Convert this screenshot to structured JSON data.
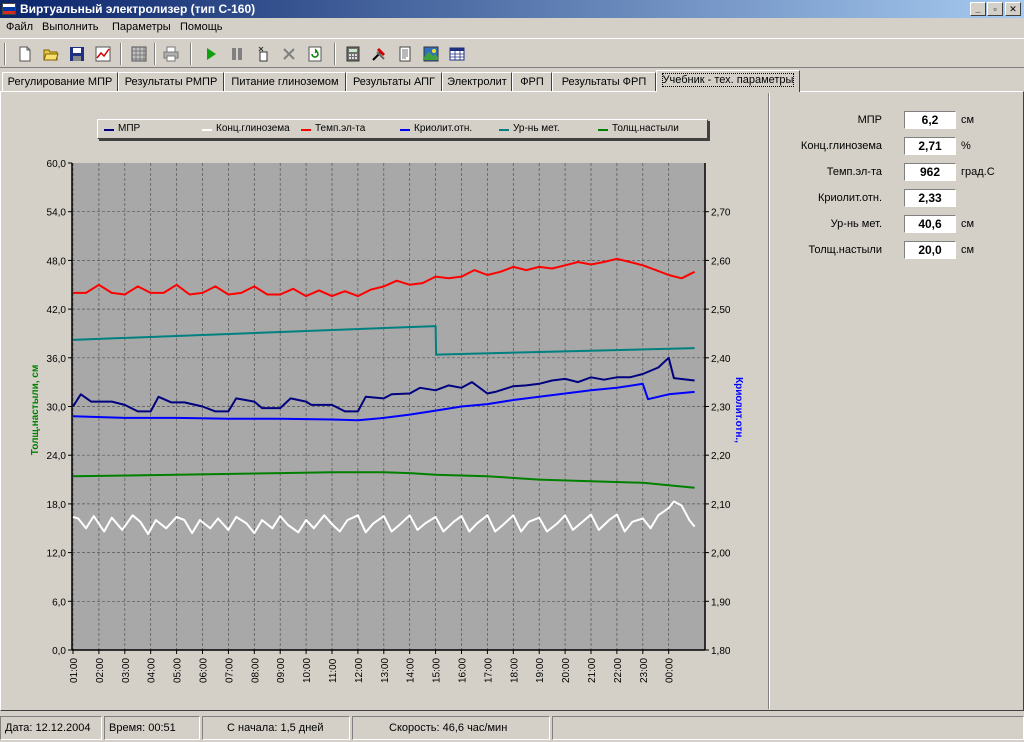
{
  "window": {
    "title": "Виртуальный электролизер (тип С-160)",
    "controls": [
      "_",
      "▫",
      "✕"
    ]
  },
  "menu": [
    "Файл",
    "Выполнить",
    "Параметры",
    "Помощь"
  ],
  "toolbar": [
    "new-file-icon",
    "open-folder-icon",
    "save-disk-icon",
    "chart-icon",
    "grid-icon",
    "print-icon",
    "play-icon",
    "pause-icon",
    "step-icon",
    "stop-cross-icon",
    "refresh-icon",
    "calculator-icon",
    "tools-icon",
    "document-icon",
    "picture-icon",
    "table-icon"
  ],
  "tabs": [
    "Регулирование МПР",
    "Результаты РМПР",
    "Питание глиноземом",
    "Результаты АПГ",
    "Электролит",
    "ФРП",
    "Результаты ФРП",
    "Учебник - тех. параметры"
  ],
  "active_tab": 7,
  "side_panel": [
    {
      "label": "МПР",
      "value": "6,2",
      "unit": "см"
    },
    {
      "label": "Конц.глинозема",
      "value": "2,71",
      "unit": "%"
    },
    {
      "label": "Темп.эл-та",
      "value": "962",
      "unit": "град.С"
    },
    {
      "label": "Криолит.отн.",
      "value": "2,33",
      "unit": ""
    },
    {
      "label": "Ур-нь мет.",
      "value": "40,6",
      "unit": "см"
    },
    {
      "label": "Толщ.настыли",
      "value": "20,0",
      "unit": "см"
    }
  ],
  "status": {
    "date": "Дата: 12.12.2004",
    "time": "Время: 00:51",
    "since": "С начала: 1,5 дней",
    "speed": "Скорость: 46,6 час/мин"
  },
  "colors": {
    "mpr": "#000080",
    "alumina": "#ffffff",
    "temperature": "#ff0000",
    "cryolite": "#0000ff",
    "metal_level": "#008080",
    "ledge": "#008000"
  },
  "chart_data": {
    "type": "line",
    "legend": [
      "МПР",
      "Конц.глинозема",
      "Темп.эл-та",
      "Криолит.отн.",
      "Ур-нь мет.",
      "Толщ.настыли"
    ],
    "legend_position": "top",
    "grid": true,
    "ylabel_left": "Толщ.настыли, см",
    "ylabel_right": "Криолит.отн.,",
    "y_left_ticks": [
      "0,0",
      "6,0",
      "12,0",
      "18,0",
      "24,0",
      "30,0",
      "36,0",
      "42,0",
      "48,0",
      "54,0",
      "60,0"
    ],
    "y_right_ticks": [
      "1,80",
      "1,90",
      "2,00",
      "2,10",
      "2,20",
      "2,30",
      "2,40",
      "2,50",
      "2,60",
      "2,70"
    ],
    "x_ticks": [
      "01:00",
      "02:00",
      "03:00",
      "04:00",
      "05:00",
      "06:00",
      "07:00",
      "08:00",
      "09:00",
      "10:00",
      "11:00",
      "12:00",
      "13:00",
      "14:00",
      "15:00",
      "16:00",
      "17:00",
      "18:00",
      "19:00",
      "20:00",
      "21:00",
      "22:00",
      "23:00",
      "00:00"
    ],
    "ylim_left": [
      0,
      60
    ],
    "xlim_hours": [
      1,
      25.05
    ],
    "series": [
      {
        "name": "Темп.эл-та",
        "color": "#ff0000",
        "x": [
          1,
          1.5,
          2,
          2.5,
          3,
          3.5,
          4,
          4.5,
          5,
          5.5,
          6,
          6.5,
          7,
          7.5,
          8,
          8.5,
          9,
          9.5,
          10,
          10.5,
          11,
          11.5,
          12,
          12.5,
          13,
          13.5,
          14,
          14.5,
          15,
          15.5,
          16,
          16.5,
          17,
          17.5,
          18,
          18.5,
          19,
          19.5,
          20,
          20.5,
          21,
          21.5,
          22,
          22.5,
          23,
          23.5,
          24,
          24.5,
          25
        ],
        "y": [
          44.0,
          44.0,
          45.0,
          44.0,
          43.8,
          44.8,
          44.0,
          44.0,
          45.0,
          43.8,
          44.0,
          44.8,
          43.8,
          44.0,
          44.8,
          43.8,
          43.8,
          44.5,
          43.6,
          44.3,
          43.6,
          44.2,
          43.6,
          44.4,
          44.8,
          45.5,
          45.0,
          45.2,
          46.0,
          45.8,
          46.0,
          46.8,
          46.2,
          46.6,
          47.2,
          46.8,
          47.2,
          47.0,
          47.4,
          47.8,
          47.5,
          47.8,
          48.2,
          47.8,
          47.4,
          46.8,
          46.2,
          45.8,
          46.6
        ]
      },
      {
        "name": "Ур-нь мет.",
        "color": "#008080",
        "x": [
          1,
          15,
          15.02,
          25
        ],
        "y": [
          38.2,
          39.9,
          36.4,
          37.2
        ]
      },
      {
        "name": "МПР",
        "color": "#000080",
        "x": [
          1,
          1.3,
          1.7,
          2.5,
          3,
          3.5,
          4,
          4.3,
          4.8,
          5.3,
          6,
          6.5,
          7,
          7.3,
          8,
          8.3,
          9,
          9.4,
          10,
          10.2,
          11,
          11.5,
          12,
          12.3,
          13,
          13.3,
          14,
          14.4,
          15,
          15.5,
          16,
          16.4,
          17,
          17.3,
          18,
          18.5,
          19,
          19.5,
          20,
          20.5,
          21,
          21.5,
          22,
          22.5,
          23,
          23.6,
          24,
          24.2,
          25
        ],
        "y": [
          30.0,
          31.5,
          30.6,
          30.6,
          30.2,
          29.4,
          29.4,
          31.2,
          30.5,
          30.5,
          30.0,
          29.4,
          29.4,
          31.0,
          30.6,
          29.8,
          29.8,
          31.0,
          30.6,
          30.2,
          30.2,
          29.4,
          29.4,
          31.2,
          31.0,
          31.5,
          31.6,
          32.3,
          32.0,
          32.6,
          32.3,
          33.0,
          31.6,
          31.8,
          32.5,
          32.6,
          32.8,
          33.2,
          33.4,
          33.0,
          33.6,
          33.3,
          33.6,
          33.6,
          34.0,
          34.8,
          36.0,
          33.5,
          33.2
        ]
      },
      {
        "name": "Криолит.отн.",
        "color": "#0000ff",
        "x": [
          1,
          3,
          5,
          7,
          9,
          11,
          12,
          13,
          14,
          15,
          16,
          17,
          18,
          19,
          20,
          21,
          22,
          23,
          23.2,
          24,
          25
        ],
        "y": [
          28.8,
          28.6,
          28.6,
          28.5,
          28.5,
          28.4,
          28.3,
          28.6,
          29.0,
          29.5,
          30.0,
          30.3,
          30.8,
          31.2,
          31.6,
          32.0,
          32.3,
          32.8,
          30.9,
          31.5,
          31.8
        ]
      },
      {
        "name": "Толщ.настыли",
        "color": "#008000",
        "x": [
          1,
          5,
          9,
          11,
          13,
          14,
          15,
          17,
          19,
          21,
          23,
          24,
          25
        ],
        "y": [
          21.4,
          21.6,
          21.8,
          21.9,
          21.9,
          21.8,
          21.6,
          21.4,
          21.0,
          20.8,
          20.6,
          20.3,
          20.0
        ]
      },
      {
        "name": "Конц.глинозема",
        "color": "#ffffff",
        "x": [
          1,
          1.2,
          1.5,
          1.8,
          2.2,
          2.5,
          2.9,
          3.3,
          3.6,
          3.9,
          4.2,
          4.6,
          5.0,
          5.3,
          5.6,
          5.9,
          6.3,
          6.6,
          7.0,
          7.3,
          7.7,
          8.0,
          8.3,
          8.7,
          9.0,
          9.3,
          9.7,
          10.0,
          10.3,
          10.7,
          11.0,
          11.3,
          11.6,
          12.0,
          12.3,
          12.6,
          13.0,
          13.3,
          13.6,
          14.0,
          14.3,
          14.6,
          15.0,
          15.3,
          15.7,
          16.0,
          16.3,
          16.6,
          17.0,
          17.3,
          17.6,
          18.0,
          18.3,
          18.6,
          19.0,
          19.3,
          19.7,
          20.0,
          20.3,
          20.6,
          21.0,
          21.3,
          21.7,
          22.0,
          22.3,
          22.6,
          23.0,
          23.3,
          23.6,
          24.0,
          24.2,
          24.5,
          24.8,
          25
        ],
        "y": [
          16.4,
          16.2,
          15.0,
          16.5,
          14.6,
          16.3,
          14.8,
          16.6,
          15.8,
          14.3,
          16.0,
          15.0,
          16.4,
          16.0,
          14.4,
          16.0,
          15.0,
          16.2,
          14.8,
          16.4,
          15.6,
          14.4,
          16.0,
          15.0,
          16.5,
          15.4,
          14.5,
          16.0,
          15.0,
          16.6,
          15.5,
          14.6,
          16.0,
          16.6,
          14.5,
          15.6,
          16.5,
          14.6,
          15.4,
          16.6,
          14.8,
          15.6,
          16.4,
          14.6,
          15.8,
          16.5,
          14.6,
          15.6,
          16.6,
          14.6,
          15.4,
          16.6,
          14.6,
          15.8,
          16.3,
          14.6,
          15.6,
          16.6,
          14.8,
          15.6,
          16.7,
          14.8,
          16.0,
          16.7,
          14.6,
          15.8,
          16.2,
          15.0,
          16.6,
          17.5,
          18.3,
          17.8,
          16.0,
          15.2
        ]
      }
    ]
  }
}
